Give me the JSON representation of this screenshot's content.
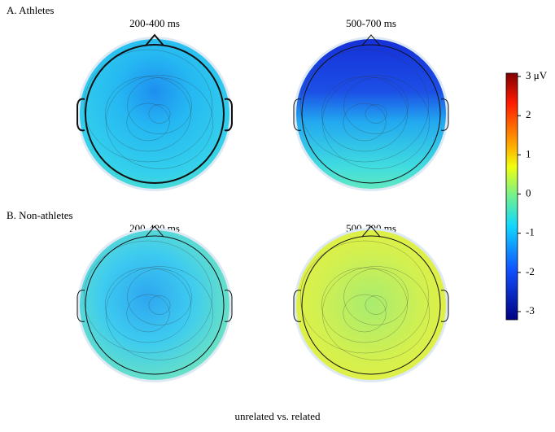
{
  "panels": [
    {
      "label": "A. Athletes",
      "maps": [
        {
          "title": "200-400 ms"
        },
        {
          "title": "500-700 ms"
        }
      ]
    },
    {
      "label": "B. Non-athletes",
      "maps": [
        {
          "title": "200-400 ms"
        },
        {
          "title": "500-700 ms"
        }
      ]
    }
  ],
  "colorbar": {
    "lim": [
      -3,
      3
    ],
    "ticks": [
      {
        "value": 3,
        "label": "3 μV"
      },
      2,
      1,
      0,
      -1,
      -2,
      -3
    ]
  },
  "caption": "unrelated vs. related"
}
